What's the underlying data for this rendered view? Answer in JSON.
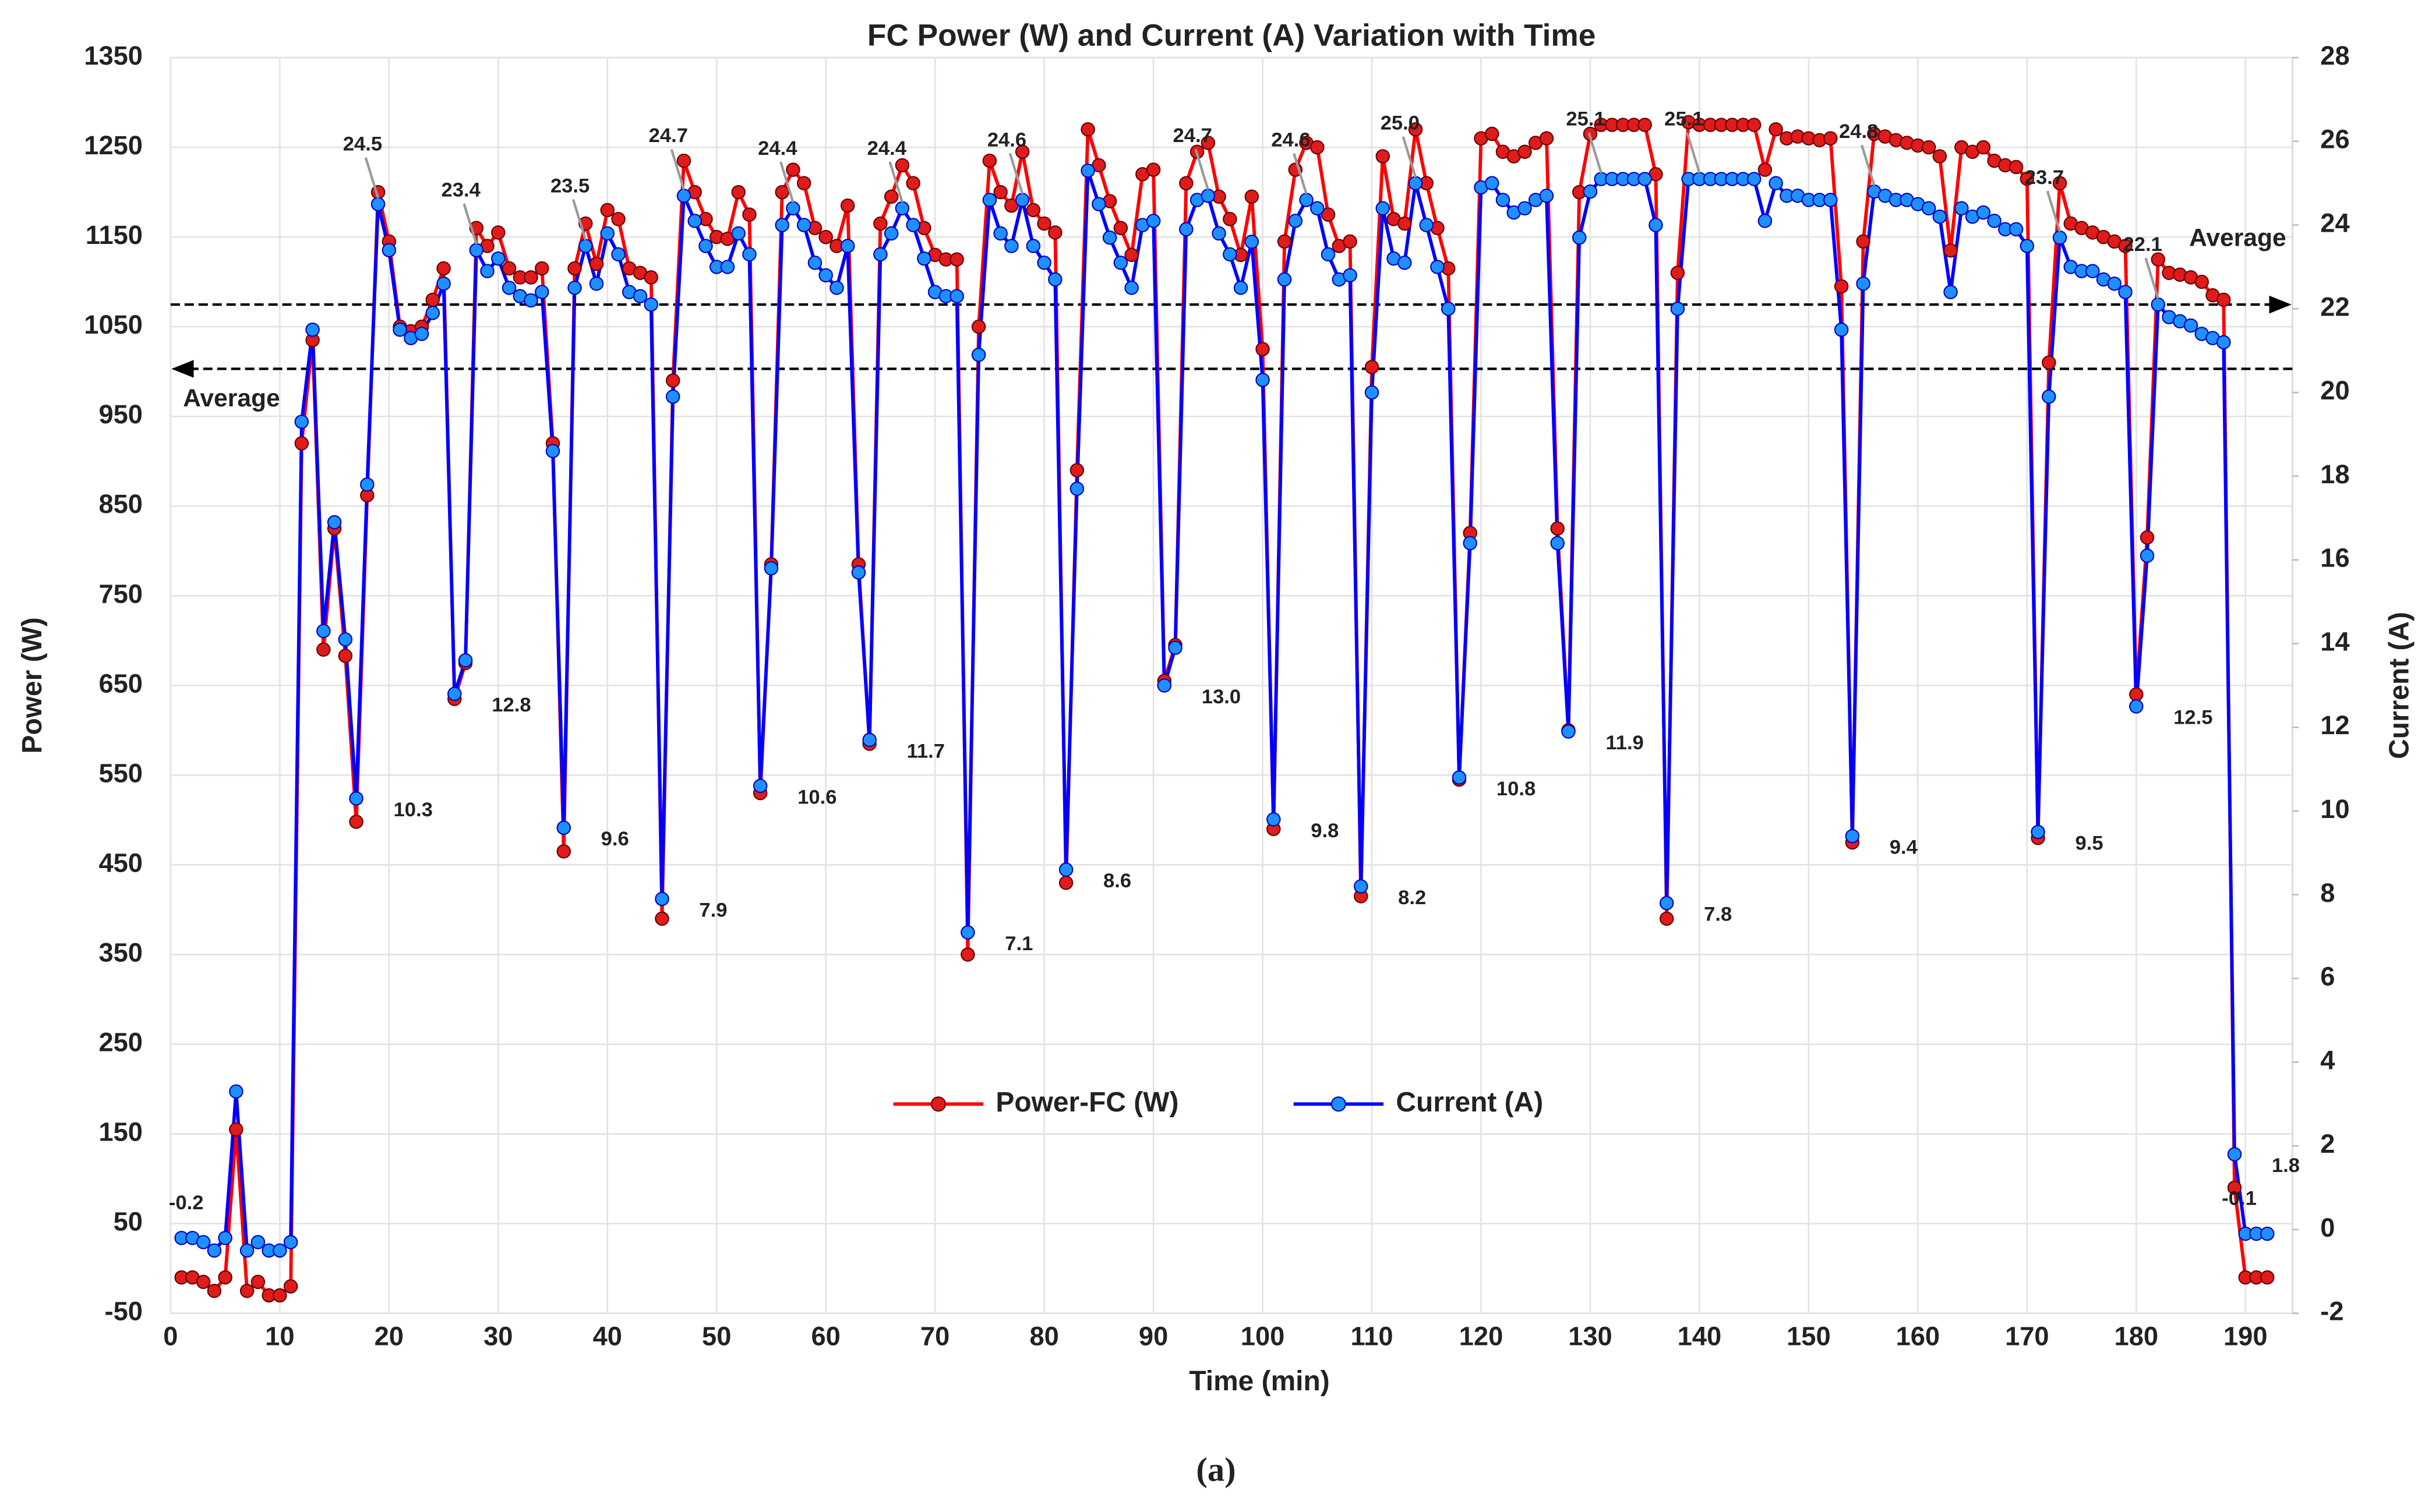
{
  "chart_data": {
    "type": "line",
    "title": "FC Power (W) and Current (A) Variation with Time",
    "x_label": "Time (min)",
    "y_label": "Power (W)",
    "y2_label": "Current (A)",
    "caption": "(a)",
    "grid": true,
    "legend": "center",
    "xlim": [
      0,
      194.3
    ],
    "xticks": [
      0,
      10,
      20,
      30,
      40,
      50,
      60,
      70,
      80,
      90,
      100,
      110,
      120,
      130,
      140,
      150,
      160,
      170,
      180,
      190
    ],
    "ylim": [
      -50,
      1350
    ],
    "yticks": [
      -50,
      50,
      150,
      250,
      350,
      450,
      550,
      650,
      750,
      850,
      950,
      1050,
      1150,
      1250,
      1350
    ],
    "y2lim": [
      -2,
      28
    ],
    "y2ticks": [
      -2,
      0,
      2,
      4,
      6,
      8,
      10,
      12,
      14,
      16,
      18,
      20,
      22,
      24,
      26,
      28
    ],
    "x": [
      1,
      2,
      3,
      4,
      5,
      6,
      7,
      8,
      9,
      10,
      11,
      12,
      13,
      14,
      15,
      16,
      17,
      18,
      19,
      20,
      21,
      22,
      23,
      24,
      25,
      26,
      27,
      28,
      29,
      30,
      31,
      32,
      33,
      34,
      35,
      36,
      37,
      38,
      39,
      40,
      41,
      42,
      43,
      44,
      45,
      46,
      47,
      48,
      49,
      50,
      51,
      52,
      53,
      54,
      55,
      56,
      57,
      58,
      59,
      60,
      61,
      62,
      63,
      64,
      65,
      66,
      67,
      68,
      69,
      70,
      71,
      72,
      73,
      74,
      75,
      76,
      77,
      78,
      79,
      80,
      81,
      82,
      83,
      84,
      85,
      86,
      87,
      88,
      89,
      90,
      91,
      92,
      93,
      94,
      95,
      96,
      97,
      98,
      99,
      100,
      101,
      102,
      103,
      104,
      105,
      106,
      107,
      108,
      109,
      110,
      111,
      112,
      113,
      114,
      115,
      116,
      117,
      118,
      119,
      120,
      121,
      122,
      123,
      124,
      125,
      126,
      127,
      128,
      129,
      130,
      131,
      132,
      133,
      134,
      135,
      136,
      137,
      138,
      139,
      140,
      141,
      142,
      143,
      144,
      145,
      146,
      147,
      148,
      149,
      150,
      151,
      152,
      153,
      154,
      155,
      156,
      157,
      158,
      159,
      160,
      161,
      162,
      163,
      164,
      165,
      166,
      167,
      168,
      169,
      170,
      171,
      172,
      173,
      174,
      175,
      176,
      177,
      178,
      179,
      180,
      181,
      182,
      183,
      184,
      185,
      186,
      187,
      188,
      189,
      190,
      191,
      192
    ],
    "series": [
      {
        "name": "Power-FC (W)",
        "color": "#ff0000",
        "marker_color": "#e01b1b",
        "marker_edge": "#6a0000",
        "values": [
          -10,
          -10,
          -15,
          -25,
          -10,
          155,
          -25,
          -15,
          -30,
          -30,
          -20,
          920,
          1035,
          690,
          825,
          683,
          498,
          862,
          1200,
          1145,
          1050,
          1045,
          1050,
          1080,
          1115,
          635,
          675,
          1160,
          1140,
          1155,
          1115,
          1105,
          1105,
          1115,
          920,
          465,
          1115,
          1165,
          1120,
          1180,
          1170,
          1115,
          1110,
          1105,
          390,
          990,
          1235,
          1200,
          1170,
          1150,
          1148,
          1200,
          1175,
          530,
          785,
          1200,
          1225,
          1210,
          1160,
          1150,
          1140,
          1185,
          785,
          585,
          1165,
          1195,
          1230,
          1210,
          1160,
          1130,
          1125,
          1125,
          350,
          1050,
          1235,
          1200,
          1185,
          1245,
          1180,
          1165,
          1155,
          430,
          890,
          1270,
          1230,
          1190,
          1160,
          1130,
          1220,
          1225,
          655,
          695,
          1210,
          1245,
          1255,
          1195,
          1170,
          1130,
          1195,
          1025,
          490,
          1145,
          1225,
          1255,
          1250,
          1175,
          1140,
          1145,
          415,
          1005,
          1240,
          1170,
          1165,
          1270,
          1210,
          1160,
          1115,
          545,
          820,
          1260,
          1265,
          1245,
          1240,
          1245,
          1255,
          1260,
          825,
          600,
          1200,
          1265,
          1275,
          1275,
          1275,
          1275,
          1275,
          1220,
          390,
          1110,
          1278,
          1275,
          1275,
          1275,
          1275,
          1275,
          1275,
          1225,
          1270,
          1260,
          1262,
          1260,
          1258,
          1260,
          1095,
          475,
          1145,
          1265,
          1262,
          1258,
          1255,
          1252,
          1250,
          1240,
          1135,
          1250,
          1245,
          1250,
          1235,
          1230,
          1228,
          1215,
          480,
          1010,
          1210,
          1165,
          1160,
          1155,
          1150,
          1145,
          1140,
          640,
          815,
          1125,
          1110,
          1108,
          1105,
          1100,
          1085,
          1080,
          90,
          -10,
          -10,
          -10
        ]
      },
      {
        "name": "Current (A)",
        "color": "#0000ff",
        "marker_color": "#1e90ff",
        "marker_edge": "#0000c0",
        "axis": "y2",
        "values": [
          -0.2,
          -0.2,
          -0.3,
          -0.5,
          -0.2,
          3.3,
          -0.5,
          -0.3,
          -0.5,
          -0.5,
          -0.3,
          19.3,
          21.5,
          14.3,
          16.9,
          14.1,
          10.3,
          17.8,
          24.5,
          23.4,
          21.5,
          21.3,
          21.4,
          21.9,
          22.6,
          12.8,
          13.6,
          23.4,
          22.9,
          23.2,
          22.5,
          22.3,
          22.2,
          22.4,
          18.6,
          9.6,
          22.5,
          23.5,
          22.6,
          23.8,
          23.3,
          22.4,
          22.3,
          22.1,
          7.9,
          19.9,
          24.7,
          24.1,
          23.5,
          23.0,
          23.0,
          23.8,
          23.3,
          10.6,
          15.8,
          24.0,
          24.4,
          24.0,
          23.1,
          22.8,
          22.5,
          23.5,
          15.7,
          11.7,
          23.3,
          23.8,
          24.4,
          24.0,
          23.2,
          22.4,
          22.3,
          22.3,
          7.1,
          20.9,
          24.6,
          23.8,
          23.5,
          24.6,
          23.5,
          23.1,
          22.7,
          8.6,
          17.7,
          25.3,
          24.5,
          23.7,
          23.1,
          22.5,
          24.0,
          24.1,
          13.0,
          13.9,
          23.9,
          24.6,
          24.7,
          23.8,
          23.3,
          22.5,
          23.6,
          20.3,
          9.8,
          22.7,
          24.1,
          24.6,
          24.4,
          23.3,
          22.7,
          22.8,
          8.2,
          20.0,
          24.4,
          23.2,
          23.1,
          25.0,
          24.0,
          23.0,
          22.0,
          10.8,
          16.4,
          24.9,
          25.0,
          24.6,
          24.3,
          24.4,
          24.6,
          24.7,
          16.4,
          11.9,
          23.7,
          24.8,
          25.1,
          25.1,
          25.1,
          25.1,
          25.1,
          24.0,
          7.8,
          22.0,
          25.1,
          25.1,
          25.1,
          25.1,
          25.1,
          25.1,
          25.1,
          24.1,
          25.0,
          24.7,
          24.7,
          24.6,
          24.6,
          24.6,
          21.5,
          9.4,
          22.6,
          24.8,
          24.7,
          24.6,
          24.6,
          24.5,
          24.4,
          24.2,
          22.4,
          24.4,
          24.2,
          24.3,
          24.1,
          23.9,
          23.9,
          23.5,
          9.5,
          19.9,
          23.7,
          23.0,
          22.9,
          22.9,
          22.7,
          22.6,
          22.4,
          12.5,
          16.1,
          22.1,
          21.8,
          21.7,
          21.6,
          21.4,
          21.3,
          21.2,
          1.8,
          -0.1,
          -0.1,
          -0.1
        ]
      }
    ],
    "annotations": [
      {
        "x": 2,
        "text": "-0.2"
      },
      {
        "x": 17,
        "text": "10.3"
      },
      {
        "x": 19,
        "text": "24.5"
      },
      {
        "x": 26,
        "text": "12.8"
      },
      {
        "x": 28,
        "text": "23.4"
      },
      {
        "x": 36,
        "text": "9.6"
      },
      {
        "x": 38,
        "text": "23.5"
      },
      {
        "x": 45,
        "text": "7.9"
      },
      {
        "x": 47,
        "text": "24.7"
      },
      {
        "x": 54,
        "text": "10.6"
      },
      {
        "x": 57,
        "text": "24.4"
      },
      {
        "x": 64,
        "text": "11.7"
      },
      {
        "x": 67,
        "text": "24.4"
      },
      {
        "x": 73,
        "text": "7.1"
      },
      {
        "x": 78,
        "text": "24.6"
      },
      {
        "x": 82,
        "text": "8.6"
      },
      {
        "x": 91,
        "text": "13.0"
      },
      {
        "x": 95,
        "text": "24.7"
      },
      {
        "x": 101,
        "text": "9.8"
      },
      {
        "x": 104,
        "text": "24.6"
      },
      {
        "x": 109,
        "text": "8.2"
      },
      {
        "x": 114,
        "text": "25.0"
      },
      {
        "x": 118,
        "text": "10.8"
      },
      {
        "x": 128,
        "text": "11.9"
      },
      {
        "x": 131,
        "text": "25.1"
      },
      {
        "x": 137,
        "text": "7.8"
      },
      {
        "x": 140,
        "text": "25.1"
      },
      {
        "x": 154,
        "text": "9.4"
      },
      {
        "x": 156,
        "text": "24.8"
      },
      {
        "x": 171,
        "text": "9.5"
      },
      {
        "x": 173,
        "text": "23.7"
      },
      {
        "x": 180,
        "text": "12.5"
      },
      {
        "x": 182,
        "text": "22.1"
      },
      {
        "x": 189,
        "text": "1.8"
      },
      {
        "x": 190,
        "text": "-0.1"
      }
    ],
    "reference_lines": [
      {
        "axis": "y",
        "value": 1003,
        "label": "Average",
        "direction": "left"
      },
      {
        "axis": "y2",
        "value": 22.1,
        "label": "Average",
        "direction": "right"
      }
    ]
  }
}
